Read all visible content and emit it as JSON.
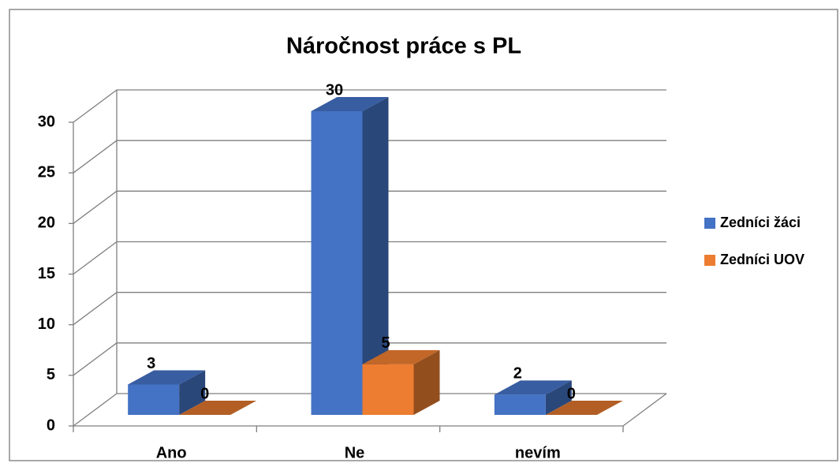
{
  "chart_data": {
    "type": "bar3d",
    "title": "Náročnost práce s PL",
    "categories": [
      "Ano",
      "Ne",
      "nevím"
    ],
    "series": [
      {
        "name": "Zedníci žáci",
        "color": "#4472c4",
        "values": [
          3,
          30,
          2
        ]
      },
      {
        "name": "Zedníci UOV",
        "color": "#ed7d31",
        "values": [
          0,
          5,
          0
        ]
      }
    ],
    "ylim": [
      0,
      30
    ],
    "yticks": [
      0,
      5,
      10,
      15,
      20,
      25,
      30
    ],
    "grid": true,
    "legend": "right"
  }
}
